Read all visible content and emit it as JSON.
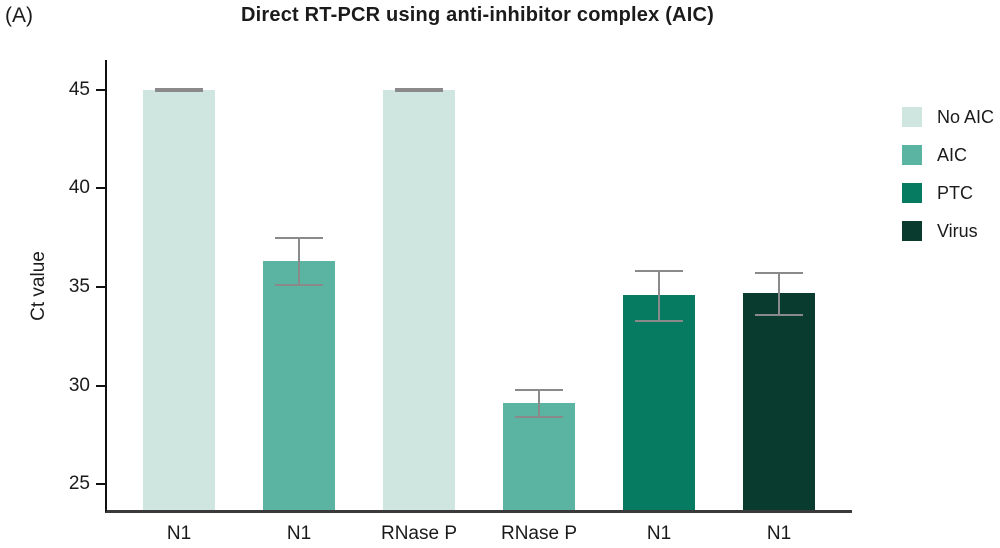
{
  "panel_label": "(A)",
  "chart_data": {
    "type": "bar",
    "title": "Direct RT-PCR using anti-inhibitor complex (AIC)",
    "xlabel": "",
    "ylabel": "Ct value",
    "yticks": [
      25,
      30,
      35,
      40,
      45
    ],
    "ylim": [
      23.7,
      46.5
    ],
    "grid": false,
    "legend_position": "right",
    "categories": [
      "N1",
      "N1",
      "RNase P",
      "RNase P",
      "N1",
      "N1"
    ],
    "bars": [
      {
        "category": "N1",
        "group": "No AIC",
        "value": 45.0,
        "err_low": 44.95,
        "err_high": 45.05
      },
      {
        "category": "N1",
        "group": "AIC",
        "value": 36.3,
        "err_low": 35.1,
        "err_high": 37.5
      },
      {
        "category": "RNase P",
        "group": "No AIC",
        "value": 45.0,
        "err_low": 44.95,
        "err_high": 45.05
      },
      {
        "category": "RNase P",
        "group": "AIC",
        "value": 29.1,
        "err_low": 28.4,
        "err_high": 29.8
      },
      {
        "category": "N1",
        "group": "PTC",
        "value": 34.6,
        "err_low": 33.3,
        "err_high": 35.8
      },
      {
        "category": "N1",
        "group": "Virus",
        "value": 34.7,
        "err_low": 33.6,
        "err_high": 35.7
      }
    ],
    "legend": [
      {
        "label": "No AIC",
        "color": "#cfe6e0"
      },
      {
        "label": "AIC",
        "color": "#5bb4a1"
      },
      {
        "label": "PTC",
        "color": "#077a62"
      },
      {
        "label": "Virus",
        "color": "#093b2e"
      }
    ],
    "colors": {
      "error_bar": "#8a8a8a",
      "axis": "#111111",
      "text": "#1b1b1b"
    }
  }
}
